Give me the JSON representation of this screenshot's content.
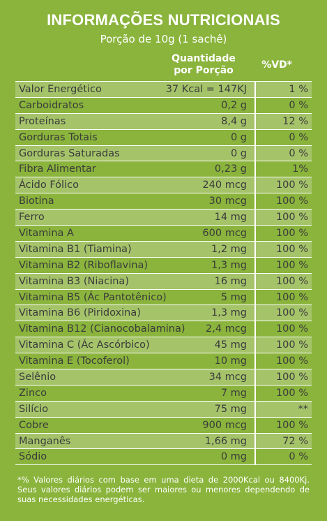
{
  "title": "INFORMAÇÕES NUTRICIONAIS",
  "subtitle": "Porção de 10g (1 sachê)",
  "header": {
    "quantity_line1": "Quantidade",
    "quantity_line2": "por Porção",
    "vd": "%VD*"
  },
  "rows": [
    {
      "name": "Valor Energético",
      "qty": "37 Kcal = 147KJ",
      "vd": "1 %"
    },
    {
      "name": "Carboidratos",
      "qty": "0,2 g",
      "vd": "0 %"
    },
    {
      "name": "Proteínas",
      "qty": "8,4 g",
      "vd": "12 %"
    },
    {
      "name": "Gorduras Totais",
      "qty": "0 g",
      "vd": "0 %"
    },
    {
      "name": "Gorduras Saturadas",
      "qty": "0 g",
      "vd": "0 %"
    },
    {
      "name": "Fibra Alimentar",
      "qty": "0,23 g",
      "vd": "1%"
    },
    {
      "name": "Ácido Fólico",
      "qty": "240 mcg",
      "vd": "100 %"
    },
    {
      "name": "Biotina",
      "qty": "30 mcg",
      "vd": "100 %"
    },
    {
      "name": "Ferro",
      "qty": "14 mg",
      "vd": "100 %"
    },
    {
      "name": "Vitamina A",
      "qty": "600 mcg",
      "vd": "100 %"
    },
    {
      "name": "Vitamina B1 (Tiamina)",
      "qty": "1,2 mg",
      "vd": "100 %"
    },
    {
      "name": "Vitamina B2 (Riboflavina)",
      "qty": "1,3 mg",
      "vd": "100 %"
    },
    {
      "name": "Vitamina B3 (Niacina)",
      "qty": "16 mg",
      "vd": "100 %"
    },
    {
      "name": "Vitamina B5 (Ác Pantotênico)",
      "qty": "5 mg",
      "vd": "100 %"
    },
    {
      "name": "Vitamina B6 (Piridoxina)",
      "qty": "1,3 mg",
      "vd": "100 %"
    },
    {
      "name": "Vitamina B12 (Cianocobalamina)",
      "qty": "2,4 mcg",
      "vd": "100 %"
    },
    {
      "name": "Vitamina C (Ác Ascórbico)",
      "qty": "45 mg",
      "vd": "100 %"
    },
    {
      "name": "Vitamina E (Tocoferol)",
      "qty": "10 mg",
      "vd": "100 %"
    },
    {
      "name": "Selênio",
      "qty": "34 mcg",
      "vd": "100 %"
    },
    {
      "name": "Zinco",
      "qty": "7 mg",
      "vd": "100 %"
    },
    {
      "name": "Silício",
      "qty": "75 mg",
      "vd": "**"
    },
    {
      "name": "Cobre",
      "qty": "900 mcg",
      "vd": "100 %"
    },
    {
      "name": "Manganês",
      "qty": "1,66 mg",
      "vd": "72 %"
    },
    {
      "name": "Sódio",
      "qty": "0 mg",
      "vd": "0 %"
    }
  ],
  "footnote": "*% Valores diários com base em uma dieta de 2000Kcal ou 8400Kj. Seus valores diários podem ser maiores ou menores dependendo de suas necessidades energéticas.",
  "colors": {
    "background": "#8ab43c",
    "row_shade": "#a5c46a",
    "text": "#3b3b3b",
    "heading": "#ffffff"
  }
}
